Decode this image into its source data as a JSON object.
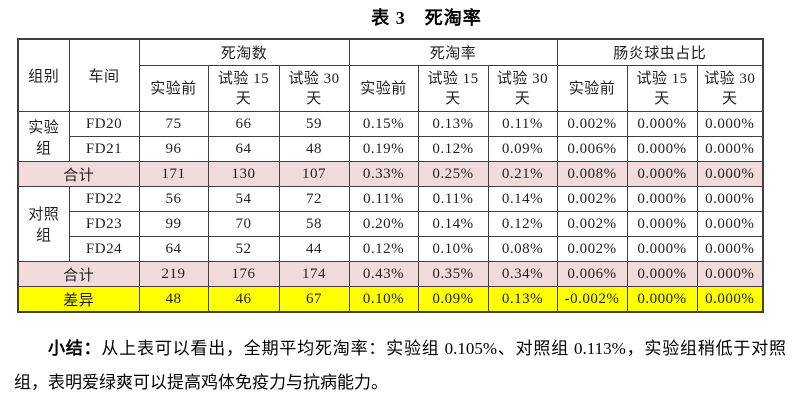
{
  "title": "表 3　死淘率",
  "table": {
    "header": {
      "group": "组别",
      "workshop": "车间",
      "sections": [
        "死淘数",
        "死淘率",
        "肠炎球虫占比"
      ],
      "subcols": [
        {
          "l1": "实验前",
          "l2": ""
        },
        {
          "l1": "试验 15",
          "l2": "天"
        },
        {
          "l1": "试验 30",
          "l2": "天"
        }
      ]
    },
    "rows": [
      {
        "group": "实验组",
        "workshop": "FD20",
        "values": [
          "75",
          "66",
          "59",
          "0.15%",
          "0.13%",
          "0.11%",
          "0.002%",
          "0.000%",
          "0.000%"
        ]
      },
      {
        "workshop": "FD21",
        "values": [
          "96",
          "64",
          "48",
          "0.19%",
          "0.12%",
          "0.09%",
          "0.006%",
          "0.000%",
          "0.000%"
        ]
      },
      {
        "label": "合计",
        "values": [
          "171",
          "130",
          "107",
          "0.33%",
          "0.25%",
          "0.21%",
          "0.008%",
          "0.000%",
          "0.000%"
        ]
      },
      {
        "group": "对照组",
        "workshop": "FD22",
        "values": [
          "56",
          "54",
          "72",
          "0.11%",
          "0.11%",
          "0.14%",
          "0.002%",
          "0.000%",
          "0.000%"
        ]
      },
      {
        "workshop": "FD23",
        "values": [
          "99",
          "70",
          "58",
          "0.20%",
          "0.14%",
          "0.12%",
          "0.002%",
          "0.000%",
          "0.000%"
        ]
      },
      {
        "workshop": "FD24",
        "values": [
          "64",
          "52",
          "44",
          "0.12%",
          "0.10%",
          "0.08%",
          "0.002%",
          "0.000%",
          "0.000%"
        ]
      },
      {
        "label": "合计",
        "values": [
          "219",
          "176",
          "174",
          "0.43%",
          "0.35%",
          "0.34%",
          "0.006%",
          "0.000%",
          "0.000%"
        ]
      },
      {
        "label": "差异",
        "values": [
          "48",
          "46",
          "67",
          "0.10%",
          "0.09%",
          "0.13%",
          "-0.002%",
          "0.000%",
          "0.000%"
        ]
      }
    ]
  },
  "summary": {
    "label": "小结：",
    "text": "从上表可以看出，全期平均死淘率：实验组 0.105%、对照组 0.113%，实验组稍低于对照组，表明爱绿爽可以提高鸡体免疫力与抗病能力。"
  },
  "colors": {
    "total_row_bg": "#f1dbda",
    "diff_row_bg": "#ffff00",
    "border": "#404040"
  }
}
